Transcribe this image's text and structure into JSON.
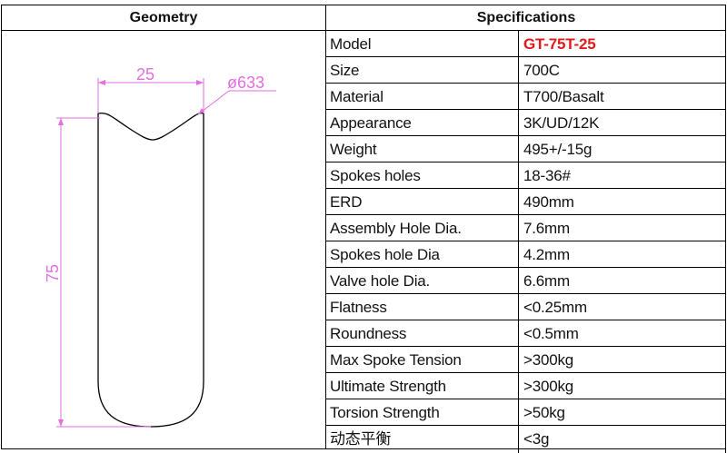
{
  "headers": {
    "geometry": "Geometry",
    "specifications": "Specifications"
  },
  "geometry": {
    "width_label": "25",
    "diameter_label": "ø633",
    "height_label": "75",
    "dimension_color": "#e26ee0"
  },
  "specs": [
    {
      "label": "Model",
      "value": "GT-75T-25"
    },
    {
      "label": "Size",
      "value": "700C"
    },
    {
      "label": "Material",
      "value": "T700/Basalt"
    },
    {
      "label": "Appearance",
      "value": "3K/UD/12K"
    },
    {
      "label": "Weight",
      "value": "495+/-15g"
    },
    {
      "label": "Spokes holes",
      "value": "18-36#"
    },
    {
      "label": "ERD",
      "value": "490mm"
    },
    {
      "label": "Assembly Hole Dia.",
      "value": "7.6mm"
    },
    {
      "label": "Spokes hole Dia",
      "value": "4.2mm"
    },
    {
      "label": "Valve hole Dia.",
      "value": "6.6mm"
    },
    {
      "label": "Flatness",
      "value": "<0.25mm"
    },
    {
      "label": "Roundness",
      "value": "<0.5mm"
    },
    {
      "label": "Max Spoke Tension",
      "value": ">300kg"
    },
    {
      "label": "Ultimate Strength",
      "value": ">300kg"
    },
    {
      "label": "Torsion Strength",
      "value": ">50kg"
    },
    {
      "label": "动态平衡",
      "value": "<3g"
    }
  ],
  "colors": {
    "model_value": "#e0191b",
    "grid_line": "#000000"
  }
}
